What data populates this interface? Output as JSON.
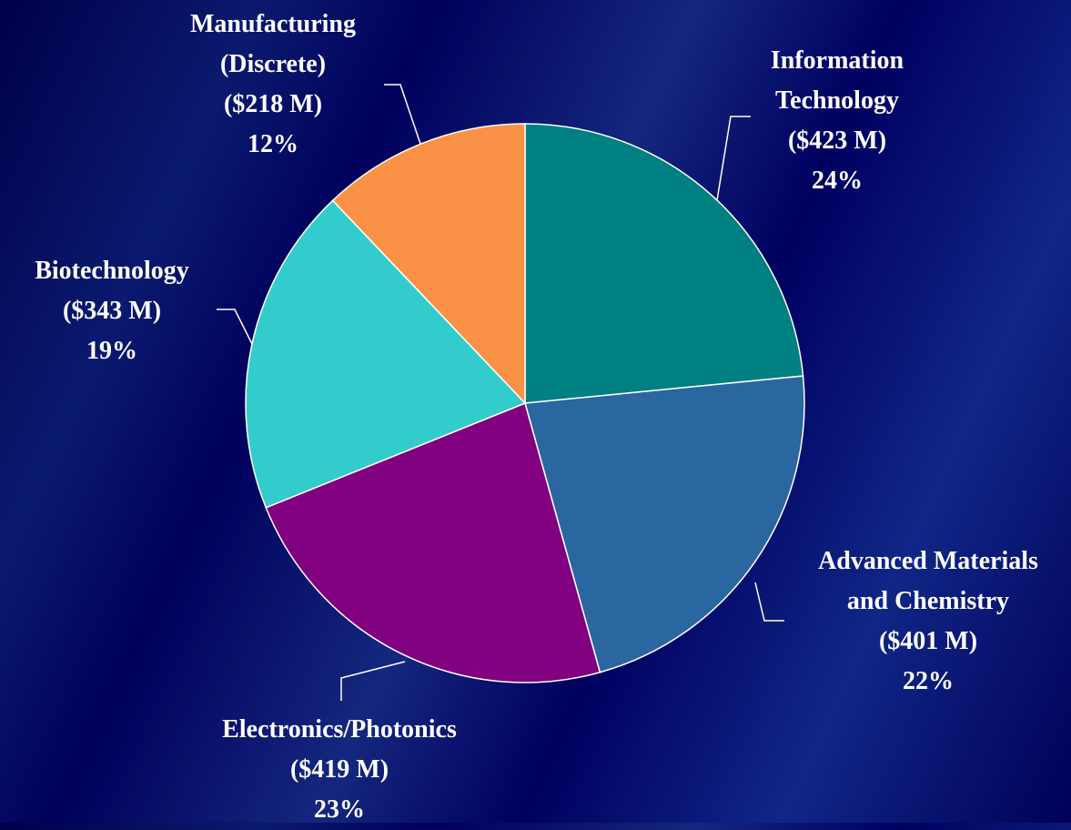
{
  "chart_data": {
    "type": "pie",
    "categories": [
      "Information\nTechnology",
      "Advanced Materials\nand Chemistry",
      "Electronics/Photonics",
      "Biotechnology",
      "Manufacturing\n(Discrete)"
    ],
    "values": [
      423,
      401,
      419,
      343,
      218
    ],
    "value_labels": [
      "($423 M)",
      "($401 M)",
      "($419 M)",
      "($343 M)",
      "($218 M)"
    ],
    "percent_labels": [
      "24%",
      "22%",
      "23%",
      "19%",
      "12%"
    ],
    "colors": [
      "#008080",
      "#2a66a0",
      "#800080",
      "#33cccc",
      "#f99247"
    ]
  }
}
